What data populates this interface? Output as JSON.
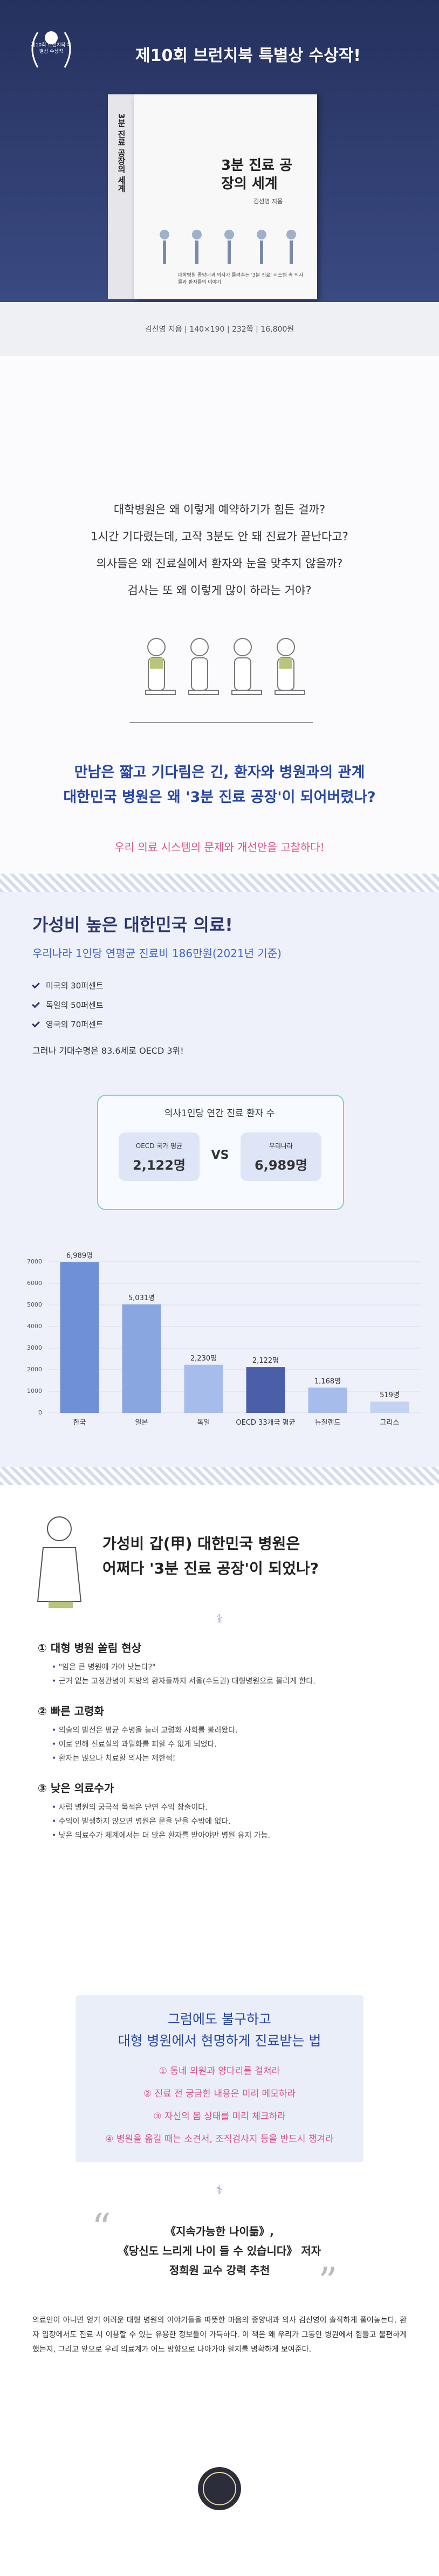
{
  "header": {
    "badge": "제10회 브런치북 특별상 수상작",
    "title": "제10회 브런치북 특별상 수상작!",
    "book": {
      "title": "3분 진료 공장의 세계",
      "author": "김선영 지음",
      "tagline": "대학병원 종양내과 의사가 들려주는 '3분 진료' 시스템 속 의사들과 환자들의 이야기"
    },
    "caption": "김선영 지음 | 140×190 | 232쪽 | 16,800원"
  },
  "intro": {
    "questions": [
      "대학병원은 왜 이렇게 예약하기가 힘든 걸까?",
      "1시간 기다렸는데, 고작 3분도 안 돼 진료가 끝난다고?",
      "의사들은 왜 진료실에서 환자와 눈을 맞추지 않을까?",
      "검사는 또 왜 이렇게 많이 하라는 거야?"
    ],
    "headline": [
      "만남은 짧고 기다림은 긴, 환자와 병원과의 관계",
      "대한민국 병원은 왜 '3분 진료 공장'이 되어버렸나?"
    ],
    "subline": "우리 의료 시스템의 문제와 개선안을 고찰하다!"
  },
  "value": {
    "title": "가성비 높은 대한민국 의료!",
    "subtitle": "우리나라 1인당 연평균 진료비 186만원(2021년 기준)",
    "list": [
      "미국의 30퍼센트",
      "독일의 50퍼센트",
      "영국의 70퍼센트"
    ],
    "note": "그러나 기대수명은 83.6세로 OECD 3위!",
    "box": {
      "title": "의사1인당 연간 진료 환자 수",
      "left_label": "OECD 국가 평균",
      "left_value": "2,122명",
      "vs": "VS",
      "right_label": "우리나라",
      "right_value": "6,989명"
    }
  },
  "chart_data": {
    "type": "bar",
    "categories": [
      "한국",
      "일본",
      "독일",
      "OECD 33개국 평균",
      "뉴질랜드",
      "그리스"
    ],
    "values": [
      6989,
      5031,
      2230,
      2122,
      1168,
      519
    ],
    "value_labels": [
      "6,989명",
      "5,031명",
      "2,230명",
      "2,122명",
      "1,168명",
      "519명"
    ],
    "colors": [
      "#6f8fd6",
      "#8aa6e0",
      "#a6bceb",
      "#4a5fa8",
      "#a6bceb",
      "#c3d2f2"
    ],
    "ylim": [
      0,
      7000
    ],
    "yticks": [
      0,
      1000,
      2000,
      3000,
      4000,
      5000,
      6000,
      7000
    ],
    "grid": true
  },
  "reasons": {
    "title": [
      "가성비 갑(甲) 대한민국 병원은",
      "어쩌다 '3분 진료 공장'이 되었나?"
    ],
    "items": [
      {
        "heading": "① 대형 병원 쏠림 현상",
        "bullets": [
          "\"암은 큰 병원에 가야 낫는다?\"",
          "근거 없는 고정관념이 지방의 환자들까지 서울(수도권) 대형병원으로 몰리게 한다."
        ]
      },
      {
        "heading": "② 빠른 고령화",
        "bullets": [
          "의술의 발전은 평균 수명을 늘려 고령화 사회를 불러왔다.",
          "이로 인해 진료실의 과밀화를 피할 수 없게 되었다.",
          "환자는 많으나 치료할 의사는 제한적!"
        ]
      },
      {
        "heading": "③ 낮은 의료수가",
        "bullets": [
          "사립 병원의 궁극적 목적은 단연 수익 창출이다.",
          "수익이 발생하지 않으면 병원은 문을 닫을 수밖에 없다.",
          "낮은 의료수가 체계에서는 더 많은 환자를 받아야만 병원 유지 가능."
        ]
      }
    ]
  },
  "tips": {
    "title": [
      "그럼에도 불구하고",
      "대형 병원에서 현명하게 진료받는 법"
    ],
    "items": [
      "① 동네 의원과 양다리를 걸쳐라",
      "② 진료 전 궁금한 내용은 미리 메모하라",
      "③ 자신의 몸 상태를 미리 체크하라",
      "④ 병원을 옮길 때는 소견서, 조직검사지 등을 반드시 챙겨라"
    ]
  },
  "recommend": {
    "books": "《지속가능한 나이듦》,",
    "author_line": "《당신도 느리게 나이 들 수 있습니다》 저자",
    "recommender": "정희원 교수 강력 추천",
    "body": "의료인이 아니면 얻기 어려운 대형 병원의 이야기들을 따뜻한 마음의 종양내과 의사 김선영이 솔직하게 풀어놓는다. 환자 입장에서도 진료 시 이용할 수 있는 유용한 정보들이 가득하다. 이 책은 왜 우리가 그동안 병원에서 힘들고 불편하게 했는지, 그리고 앞으로 우리 의료계가 어느 방향으로 나아가야 할지를 명확하게 보여준다."
  }
}
